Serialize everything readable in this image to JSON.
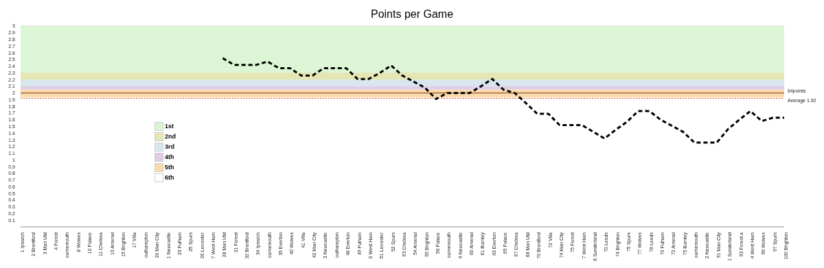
{
  "chart_data": {
    "type": "line",
    "title": "Points per Game",
    "categories": [
      "1 Ipswich",
      "2 Brentford",
      "3 Man Utd",
      "4 Forest",
      "ournemouth",
      "8 Wolves",
      "10 Palace",
      "11 Chelsea",
      "13 Arsenal",
      "15 Brighton",
      "17 Villa",
      "outhampton",
      "20 Man City",
      "1 Newcastle",
      "23 Fulham",
      "25 Spurs",
      "26 Leicester",
      "7 West Ham",
      "28 Man Utd",
      "31 Forest",
      "32 Brentford",
      "34 Ipswich",
      "ournemouth",
      "39 Everton",
      "40 Wolves",
      "41 Villa",
      "42 Man City",
      "3 Newcastle",
      "outhampton",
      "48 Everton",
      "49 Fulham",
      "0 West Ham",
      "51 Leicester",
      "52 Spurs",
      "53 Chelsea",
      "54 Arsenal",
      "55 Brighton",
      "56 Palace",
      "ournemouth",
      "9 Newcastle",
      "60 Arsenal",
      "61 Burnley",
      "63 Everton",
      "65 Palace",
      "67 Chelsea",
      "68 Man Utd",
      "70 Brentford",
      "72 Villa",
      "74 Man City",
      "75 Forest",
      "7 West Ham",
      "8 Sunderland",
      "70 Leeds",
      "74 Brighton",
      "75 Spurs",
      "77 Wolves",
      "78 Leeds",
      "70 Fulham",
      "72 Arsenal",
      "75 Burnley",
      "ournemouth",
      "2 Newcastle",
      "91 Man City",
      "1 Sunderland",
      "93 Forest a",
      "4 West Ham",
      "96 Wolves",
      "97 Spurs",
      "100 Brighton"
    ],
    "series": [
      {
        "color": "#000000",
        "values": [
          null,
          null,
          null,
          null,
          null,
          null,
          null,
          null,
          null,
          null,
          null,
          null,
          null,
          null,
          null,
          null,
          null,
          null,
          2.52,
          2.42,
          2.42,
          2.42,
          2.47,
          2.37,
          2.37,
          2.26,
          2.26,
          2.37,
          2.37,
          2.37,
          2.21,
          2.21,
          2.3,
          2.41,
          2.26,
          2.17,
          2.08,
          1.91,
          2.0,
          2.0,
          2.0,
          2.1,
          2.21,
          2.05,
          2.0,
          1.85,
          1.69,
          1.69,
          1.52,
          1.52,
          1.52,
          1.42,
          1.32,
          1.45,
          1.57,
          1.73,
          1.73,
          1.6,
          1.51,
          1.42,
          1.26,
          1.26,
          1.26,
          1.46,
          1.6,
          1.73,
          1.58,
          1.63,
          1.63
        ]
      }
    ],
    "ylim": [
      0,
      3
    ],
    "yticks": [
      0.1,
      0.2,
      0.3,
      0.4,
      0.5,
      0.6,
      0.7,
      0.8,
      0.9,
      1,
      1.1,
      1.2,
      1.3,
      1.4,
      1.5,
      1.6,
      1.7,
      1.8,
      1.9,
      2,
      2.1,
      2.2,
      2.3,
      2.4,
      2.5,
      2.6,
      2.7,
      2.8,
      2.9,
      3
    ],
    "grid": "y",
    "marker": "none",
    "line_style": "dashed",
    "legend": "left",
    "bands": [
      {
        "axis": "y",
        "from": 2.3,
        "to": 3,
        "label": "1st",
        "color": "#dcf5d4"
      },
      {
        "axis": "y",
        "from": 2.2,
        "to": 2.3,
        "label": "2nd",
        "color": "#e6e6b4"
      },
      {
        "axis": "y",
        "from": 2.1,
        "to": 2.2,
        "label": "3rd",
        "color": "#d8e6ee"
      },
      {
        "axis": "y",
        "from": 2.05,
        "to": 2.1,
        "label": "4th",
        "color": "#e2cde8"
      },
      {
        "axis": "y",
        "from": 1.93,
        "to": 2.05,
        "label": "5th",
        "color": "#f8dcae"
      },
      {
        "axis": "y",
        "from": 0,
        "to": 1.93,
        "label": "6th",
        "color": "#ffffff"
      }
    ],
    "ref_lines": [
      {
        "axis": "y",
        "value": 2,
        "label": "64points",
        "color": "#a0522d",
        "line_style": "solid"
      },
      {
        "axis": "y",
        "value": 1.92,
        "label": "Average 1.92",
        "color": "#e8423a",
        "line_style": "dotted"
      }
    ]
  }
}
